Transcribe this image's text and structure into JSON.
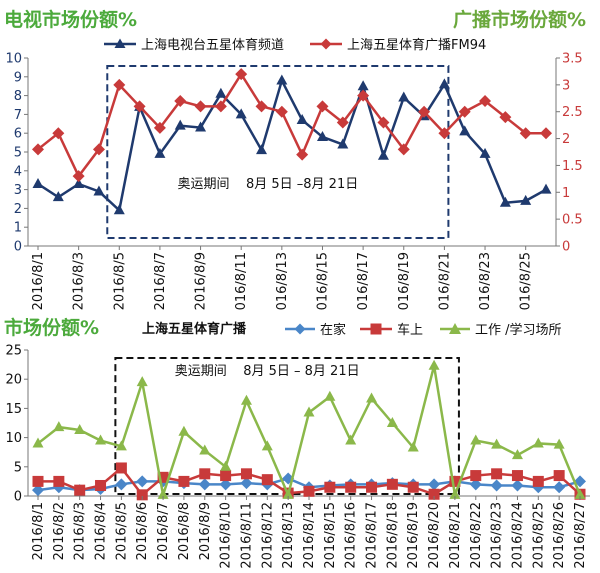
{
  "chart_data": [
    {
      "type": "line",
      "title_left": "电视市场份额%",
      "title_right": "广播市场份额%",
      "annotation": "奥运期间    8月 5日 –8月 21日",
      "x": [
        "2016/8/1",
        "2016/8/2",
        "2016/8/3",
        "2016/8/4",
        "2016/8/5",
        "2016/8/6",
        "2016/8/7",
        "2016/8/8",
        "2016/8/9",
        "2016/8/10",
        "2016/8/11",
        "2016/8/12",
        "2016/8/13",
        "2016/8/14",
        "2016/8/15",
        "2016/8/16",
        "2016/8/17",
        "2016/8/18",
        "2016/8/19",
        "2016/8/20",
        "2016/8/21",
        "2016/8/22",
        "2016/8/23",
        "2016/8/24",
        "2016/8/25",
        "2016/8/26"
      ],
      "xticks": [
        "2016/8/1",
        "2016/8/3",
        "2016/8/5",
        "2016/8/7",
        "2016/8/9",
        "2016/8/11",
        "2016/8/13",
        "2016/8/15",
        "2016/8/17",
        "2016/8/19",
        "2016/8/21",
        "2016/8/23",
        "2016/8/25"
      ],
      "y_left": {
        "min": 0,
        "max": 10,
        "ticks": [
          "0",
          "1",
          "2",
          "3",
          "4",
          "5",
          "6",
          "7",
          "8",
          "9",
          "10"
        ]
      },
      "y_right": {
        "min": 0,
        "max": 3.5,
        "ticks": [
          "0",
          "0.5",
          "1",
          "1.5",
          "2",
          "2.5",
          "3",
          "3.5"
        ]
      },
      "highlight_range": [
        "2016/8/5",
        "2016/8/21"
      ],
      "series": [
        {
          "name": "上海电视台五星体育频道",
          "axis": "left",
          "color": "#1f3a6e",
          "marker": "triangle",
          "values": [
            3.3,
            2.6,
            3.3,
            2.9,
            1.9,
            7.4,
            4.9,
            6.4,
            6.3,
            8.1,
            7.0,
            5.1,
            8.8,
            6.7,
            5.8,
            5.4,
            8.5,
            4.8,
            7.9,
            6.9,
            8.6,
            6.1,
            4.9,
            2.3,
            2.4,
            3.0
          ]
        },
        {
          "name": "上海五星体育广播FM94",
          "axis": "right",
          "color": "#c83a3a",
          "marker": "diamond",
          "values": [
            1.8,
            2.1,
            1.3,
            1.8,
            3.0,
            2.6,
            2.2,
            2.7,
            2.6,
            2.6,
            3.2,
            2.6,
            2.5,
            1.7,
            2.6,
            2.3,
            2.8,
            2.3,
            1.8,
            2.5,
            2.1,
            2.5,
            2.7,
            2.4,
            2.1,
            2.1
          ]
        }
      ],
      "colors": {
        "title_left": "#4caa3c",
        "title_right": "#6aa83c",
        "axis_left": "#1f3a6e",
        "axis_right": "#c83a3a",
        "box": "#1f3a6e"
      }
    },
    {
      "type": "line",
      "title": "市场份额%",
      "legend_title": "上海五星体育广播",
      "annotation": "奥运期间    8月 5日 – 8月 21日",
      "x": [
        "2016/8/1",
        "2016/8/2",
        "2016/8/3",
        "2016/8/4",
        "2016/8/5",
        "2016/8/6",
        "2016/8/7",
        "2016/8/8",
        "2016/8/9",
        "2016/8/10",
        "2016/8/11",
        "2016/8/12",
        "2016/8/13",
        "2016/8/14",
        "2016/8/15",
        "2016/8/16",
        "2016/8/17",
        "2016/8/18",
        "2016/8/19",
        "2016/8/20",
        "2016/8/21",
        "2016/8/22",
        "2016/8/23",
        "2016/8/24",
        "2016/8/25",
        "2016/8/26",
        "2016/8/27"
      ],
      "y": {
        "min": 0,
        "max": 25,
        "ticks": [
          "0",
          "5",
          "10",
          "15",
          "20",
          "25"
        ]
      },
      "highlight_range": [
        "2016/8/5",
        "2016/8/21"
      ],
      "series": [
        {
          "name": "在家",
          "color": "#4a86c8",
          "marker": "diamond",
          "values": [
            1.0,
            1.5,
            1.0,
            1.2,
            2.0,
            2.5,
            2.5,
            2.2,
            2.0,
            2.0,
            2.2,
            2.0,
            3.0,
            1.5,
            1.8,
            2.0,
            2.0,
            2.2,
            2.0,
            2.0,
            2.5,
            2.0,
            1.8,
            1.8,
            1.5,
            1.5,
            2.5
          ]
        },
        {
          "name": "车上",
          "color": "#c83a3a",
          "marker": "square",
          "values": [
            2.5,
            2.5,
            1.0,
            1.8,
            4.8,
            0.2,
            3.2,
            2.5,
            3.8,
            3.5,
            3.8,
            2.8,
            0.5,
            0.8,
            1.5,
            1.5,
            1.5,
            2.0,
            1.5,
            0.3,
            2.5,
            3.5,
            3.8,
            3.5,
            2.5,
            3.5,
            0.3
          ]
        },
        {
          "name": "工作 /学习场所",
          "color": "#8bb84a",
          "marker": "triangle",
          "values": [
            9.0,
            11.8,
            11.3,
            9.5,
            8.5,
            19.5,
            0.2,
            11.0,
            7.8,
            5.0,
            16.3,
            8.5,
            0.2,
            14.3,
            17.0,
            9.5,
            16.7,
            12.5,
            8.3,
            22.3,
            0.2,
            9.5,
            8.8,
            7.0,
            9.0,
            8.8,
            0.2
          ]
        }
      ],
      "colors": {
        "title": "#4caa3c",
        "box": "#111111"
      }
    }
  ]
}
